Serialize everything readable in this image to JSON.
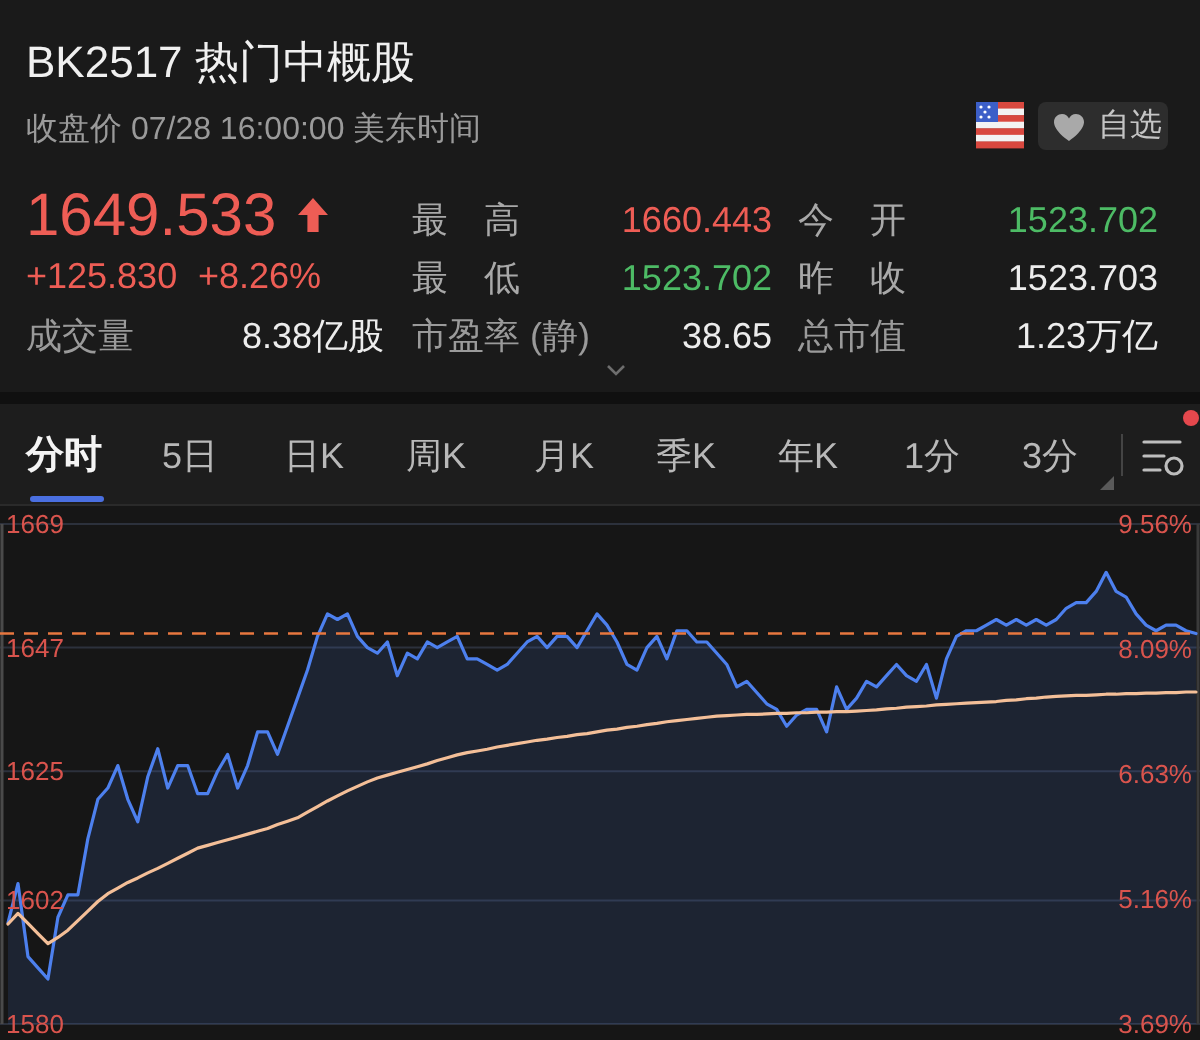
{
  "chart_data": {
    "type": "area",
    "title": "BK2517 热门中概股",
    "subtitle": "收盘价 07/28 16:00:00 美东时间",
    "annotations": [
      "1649.533",
      "+125.830",
      "+8.26%",
      "最 高",
      "1660.443",
      "今 开",
      "1523.702",
      "最 低",
      "1523.702",
      "昨 收",
      "1523.703",
      "成交量",
      "8.38亿股",
      "市盈率 (静)",
      "38.65",
      "总市值",
      "1.23万亿",
      "自选",
      "分时",
      "5日",
      "日K",
      "周K",
      "月K",
      "季K",
      "年K",
      "1分",
      "3分"
    ],
    "categories": [
      null,
      null,
      null,
      null,
      null,
      null,
      null,
      null,
      null,
      null,
      null,
      null,
      null,
      null,
      null,
      null,
      null,
      null,
      null,
      null,
      null,
      null,
      null,
      null,
      null,
      null,
      null,
      null,
      null,
      null,
      null,
      null,
      null,
      null,
      null,
      null,
      null,
      null,
      null,
      null,
      null,
      null,
      null,
      null,
      null,
      null,
      null,
      null,
      null,
      null,
      null,
      null,
      null,
      null,
      null,
      null,
      null,
      null,
      null,
      null,
      null,
      null,
      null,
      null,
      null,
      null,
      null,
      null,
      null,
      null,
      null,
      null,
      null,
      null,
      null,
      null,
      null,
      null,
      null,
      null,
      null,
      null,
      null,
      null,
      null,
      null,
      null,
      null,
      null,
      null,
      null,
      null,
      null,
      null,
      null,
      null,
      null,
      null,
      null,
      null,
      null,
      null,
      null,
      null,
      null,
      null,
      null,
      null,
      null,
      null,
      null,
      null,
      null,
      null,
      null,
      null,
      null,
      null,
      null,
      null
    ],
    "series": [
      {
        "color": "#4d80ee",
        "values": [
          1598,
          1605,
          1592,
          1590,
          1588,
          1599,
          1603,
          1603,
          1613,
          1620,
          1622,
          1626,
          1620,
          1616,
          1624,
          1629,
          1622,
          1626,
          1626,
          1621,
          1621,
          1625,
          1628,
          1622,
          1626,
          1632,
          1632,
          1628,
          1633,
          1638,
          1643,
          1649,
          1653,
          1652,
          1653,
          1649,
          1647,
          1646,
          1648,
          1642,
          1646,
          1645,
          1648,
          1647,
          1648,
          1649,
          1645,
          1645,
          1644,
          1643,
          1644,
          1646,
          1648,
          1649,
          1647,
          1649,
          1649,
          1647,
          1650,
          1653,
          1651,
          1648,
          1644,
          1643,
          1647,
          1649,
          1645,
          1650,
          1650,
          1648,
          1648,
          1646,
          1644,
          1640,
          1641,
          1639,
          1637,
          1636,
          1633,
          1635,
          1636,
          1636,
          1632,
          1640,
          1636,
          1638,
          1641,
          1640,
          1642,
          1644,
          1642,
          1641,
          1644,
          1638,
          1645,
          1649,
          1650,
          1650,
          1651,
          1652,
          1651,
          1652,
          1651,
          1652,
          1651,
          1652,
          1654,
          1655,
          1655,
          1657,
          1660.4,
          1657,
          1656,
          1653,
          1651,
          1650,
          1651,
          1651,
          1650,
          1649.5
        ]
      },
      {
        "type": "line",
        "color": "#f4bf98",
        "values": [
          1597.8,
          1599.7,
          1597.9,
          1596.1,
          1594.3,
          1595.4,
          1596.7,
          1598.4,
          1600.1,
          1601.8,
          1603.2,
          1604.2,
          1605.2,
          1606.0,
          1606.9,
          1607.7,
          1608.6,
          1609.5,
          1610.4,
          1611.3,
          1611.8,
          1612.3,
          1612.8,
          1613.3,
          1613.8,
          1614.3,
          1614.8,
          1615.5,
          1616.1,
          1616.7,
          1617.7,
          1618.7,
          1619.7,
          1620.6,
          1621.5,
          1622.3,
          1623.1,
          1623.8,
          1624.3,
          1624.8,
          1625.3,
          1625.8,
          1626.3,
          1626.9,
          1627.4,
          1627.9,
          1628.3,
          1628.6,
          1628.9,
          1629.3,
          1629.6,
          1629.9,
          1630.2,
          1630.5,
          1630.7,
          1631.0,
          1631.2,
          1631.5,
          1631.7,
          1632.0,
          1632.3,
          1632.5,
          1632.8,
          1633.0,
          1633.3,
          1633.5,
          1633.8,
          1634.0,
          1634.2,
          1634.4,
          1634.6,
          1634.8,
          1634.9,
          1635.0,
          1635.1,
          1635.1,
          1635.2,
          1635.3,
          1635.3,
          1635.4,
          1635.4,
          1635.5,
          1635.5,
          1635.6,
          1635.6,
          1635.7,
          1635.8,
          1635.9,
          1636.1,
          1636.2,
          1636.4,
          1636.5,
          1636.6,
          1636.8,
          1636.9,
          1637.0,
          1637.1,
          1637.2,
          1637.3,
          1637.4,
          1637.6,
          1637.7,
          1637.9,
          1638.0,
          1638.2,
          1638.3,
          1638.4,
          1638.5,
          1638.5,
          1638.6,
          1638.7,
          1638.7,
          1638.8,
          1638.8,
          1638.9,
          1638.9,
          1639.0,
          1639.0,
          1639.1,
          1639.1
        ]
      }
    ],
    "ylim": [
      1580,
      1669
    ],
    "yticks": [
      1580,
      1602,
      1625,
      1647,
      1669
    ],
    "y2lim": [
      3.69,
      9.56
    ],
    "y2ticks": [
      {
        "value": 3.69,
        "label": "3.69%"
      },
      {
        "value": 5.16,
        "label": "5.16%"
      },
      {
        "value": 6.63,
        "label": "6.63%"
      },
      {
        "value": 8.09,
        "label": "8.09%"
      },
      {
        "value": 9.56,
        "label": "9.56%"
      }
    ],
    "ref_lines": [
      {
        "axis": "y",
        "value": 1649.5,
        "color": "#e8773f",
        "line_style": "dashed"
      }
    ],
    "grid": "y",
    "tick_labels": "y"
  }
}
